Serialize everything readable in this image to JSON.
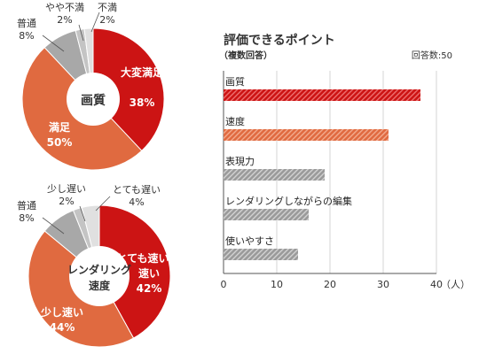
{
  "chart_data": [
    {
      "type": "pie",
      "title": "画質",
      "slices": [
        {
          "name": "大変満足",
          "percent": 38,
          "label": "38%",
          "color": "#cc1414"
        },
        {
          "name": "満足",
          "percent": 50,
          "label": "50%",
          "color": "#e06a40"
        },
        {
          "name": "普通",
          "percent": 8,
          "label": "8%",
          "color": "#a8a8a8"
        },
        {
          "name": "やや不満",
          "percent": 2,
          "label": "2%",
          "color": "#c4c4c4"
        },
        {
          "name": "不満",
          "percent": 2,
          "label": "2%",
          "color": "#e0e0e0"
        }
      ]
    },
    {
      "type": "pie",
      "title_line1": "レンダリング",
      "title_line2": "速度",
      "slices": [
        {
          "name": "とても速い",
          "percent": 42,
          "label": "42%",
          "color": "#cc1414"
        },
        {
          "name": "少し速い",
          "percent": 44,
          "label": "44%",
          "color": "#e06a40"
        },
        {
          "name": "普通",
          "percent": 8,
          "label": "8%",
          "color": "#a8a8a8"
        },
        {
          "name": "少し遅い",
          "percent": 2,
          "label": "2%",
          "color": "#c4c4c4"
        },
        {
          "name": "とても遅い",
          "percent": 4,
          "label": "4%",
          "color": "#e0e0e0"
        }
      ]
    },
    {
      "type": "bar",
      "orientation": "horizontal",
      "title": "評価できるポイント",
      "subtitle": "（複数回答）",
      "note": "回答数:50",
      "categories": [
        "画質",
        "速度",
        "表現力",
        "レンダリングしながらの編集",
        "使いやすさ"
      ],
      "values": [
        37,
        31,
        19,
        16,
        14
      ],
      "colors": [
        "#cc1414",
        "#e06a40",
        "#999999",
        "#999999",
        "#999999"
      ],
      "xlim": [
        0,
        40
      ],
      "xticks": [
        "0",
        "10",
        "20",
        "30",
        "40"
      ],
      "unit": "（人）",
      "grid": true
    }
  ]
}
